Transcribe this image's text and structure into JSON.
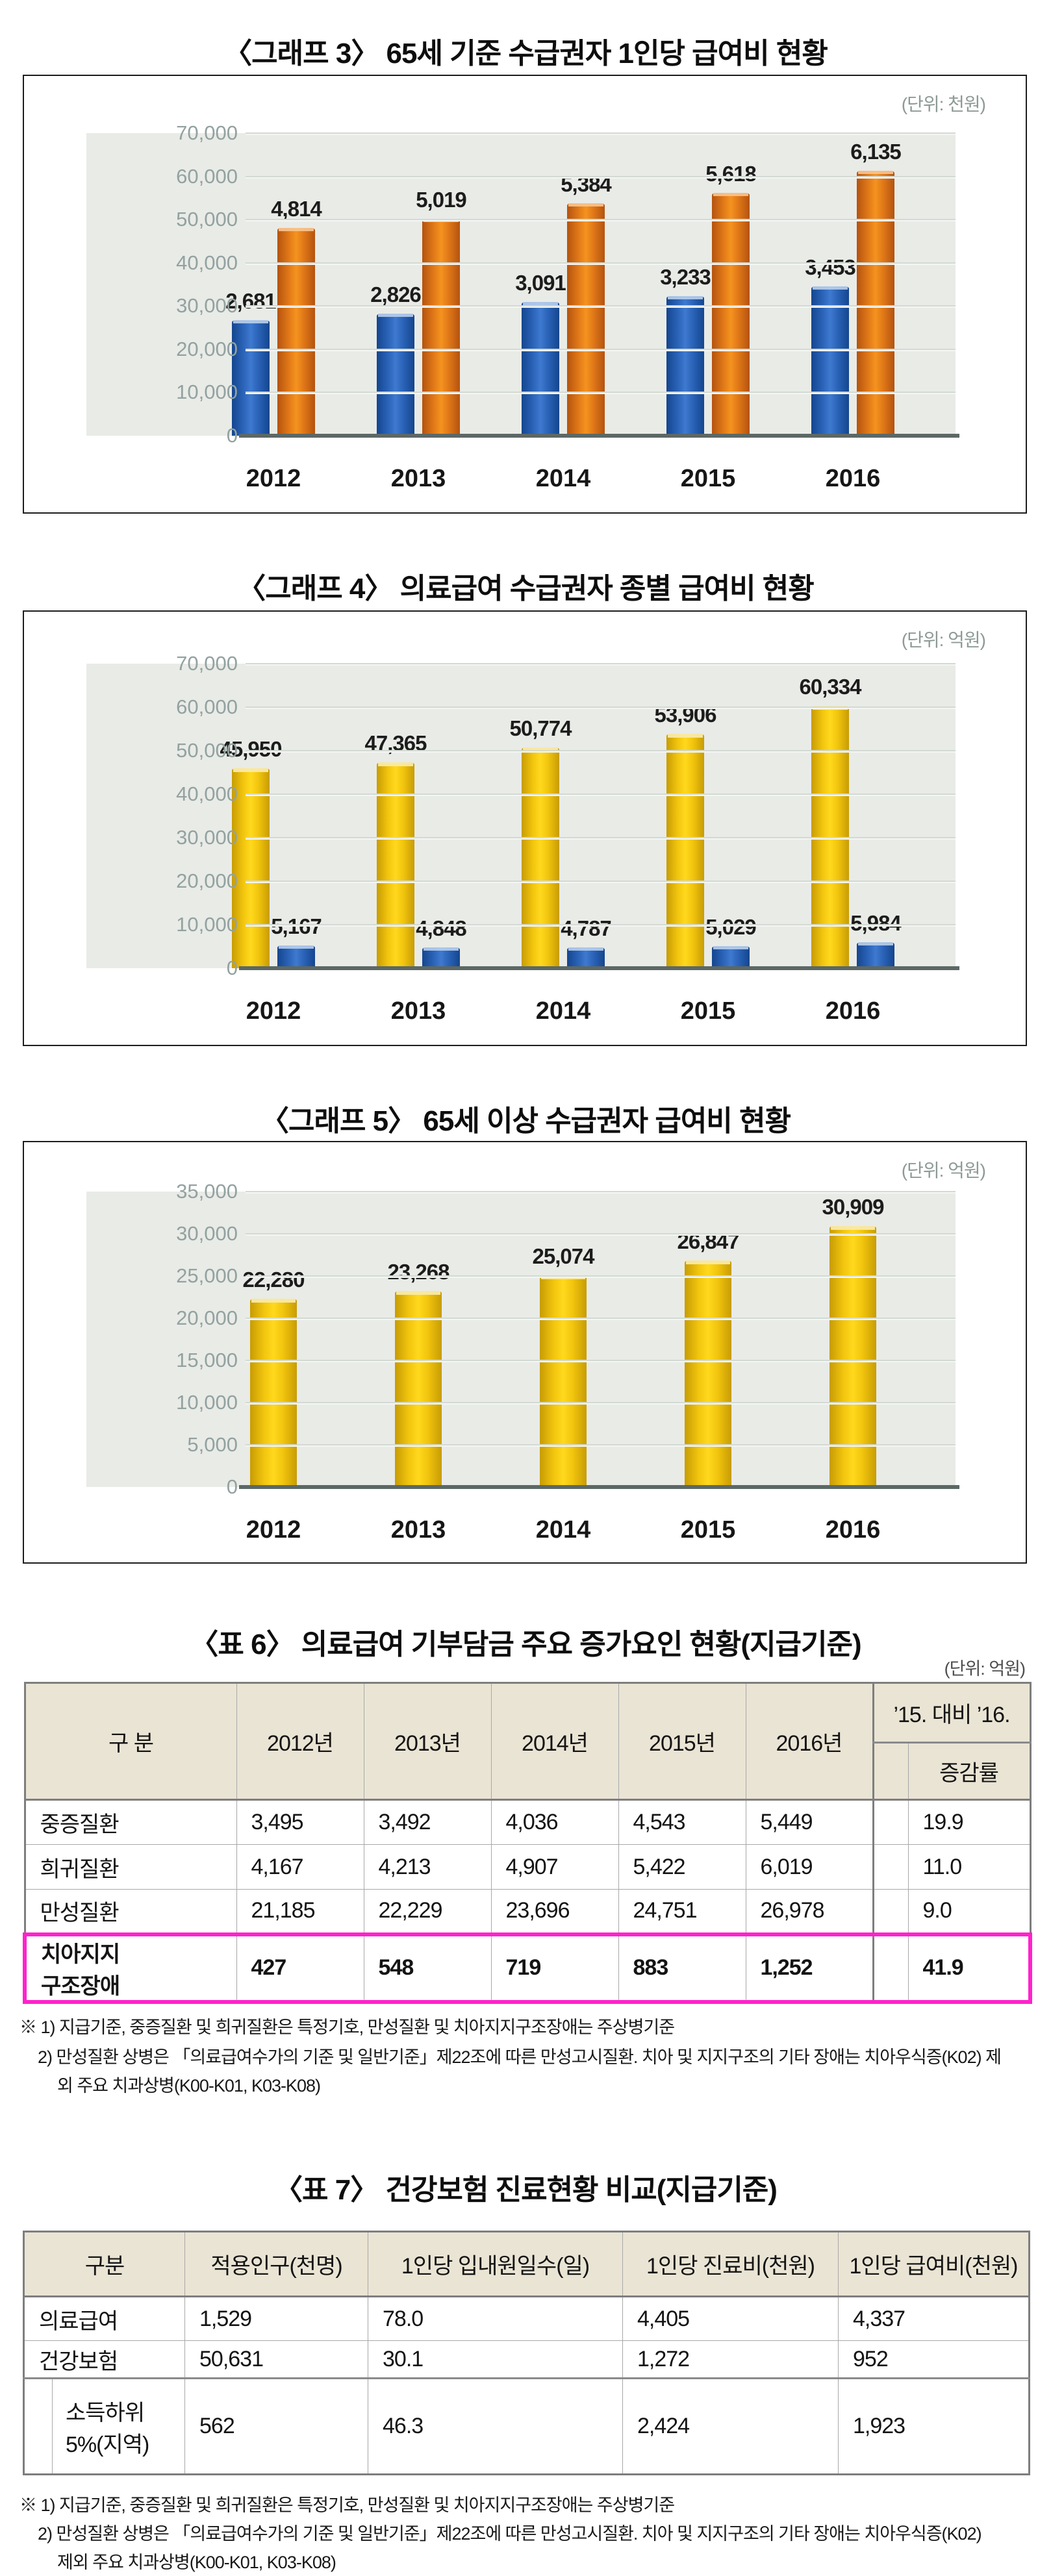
{
  "chart_data": [
    {
      "type": "bar",
      "title": "〈그래프 3〉 65세 기준 수급권자 1인당 급여비 현황",
      "unit_label": "(단위: 천원)",
      "categories": [
        "2012",
        "2013",
        "2014",
        "2015",
        "2016"
      ],
      "series": [
        {
          "name": "blue-bars",
          "color": "blue",
          "values": [
            2681,
            2826,
            3091,
            3233,
            3453
          ]
        },
        {
          "name": "orange-bars",
          "color": "orange",
          "values": [
            4814,
            5019,
            5384,
            5618,
            6135
          ]
        }
      ],
      "axis": {
        "ylim": [
          0,
          70000
        ],
        "tick_step": 10000,
        "bar_value_scale": 10
      },
      "grid": true,
      "legend": "none",
      "bar_width": "w58"
    },
    {
      "type": "bar",
      "title": "〈그래프 4〉 의료급여 수급권자 종별 급여비 현황",
      "unit_label": "(단위: 억원)",
      "categories": [
        "2012",
        "2013",
        "2014",
        "2015",
        "2016"
      ],
      "series": [
        {
          "name": "yellow-bars",
          "color": "yellow",
          "values": [
            45950,
            47365,
            50774,
            53906,
            60334
          ]
        },
        {
          "name": "blue-bars",
          "color": "blue",
          "values": [
            5167,
            4848,
            4787,
            5029,
            5984
          ]
        }
      ],
      "axis": {
        "ylim": [
          0,
          70000
        ],
        "tick_step": 10000,
        "bar_value_scale": 1
      },
      "grid": true,
      "legend": "none",
      "bar_width": "w58"
    },
    {
      "type": "bar",
      "title": "〈그래프 5〉 65세 이상 수급권자 급여비 현황",
      "unit_label": "(단위: 억원)",
      "categories": [
        "2012",
        "2013",
        "2014",
        "2015",
        "2016"
      ],
      "series": [
        {
          "name": "yellow-bars",
          "color": "yellow",
          "values": [
            22280,
            23268,
            25074,
            26847,
            30909
          ]
        }
      ],
      "axis": {
        "ylim": [
          0,
          35000
        ],
        "tick_step": 5000,
        "bar_value_scale": 1
      },
      "grid": true,
      "legend": "none",
      "bar_width": "w72"
    }
  ],
  "tables": [
    {
      "title": "〈표 6〉 의료급여 기부담금 주요 증가요인 현황(지급기준)",
      "unit_label": "(단위: 억원)",
      "col_headers": [
        "구 분",
        "2012년",
        "2013년",
        "2014년",
        "2015년",
        "2016년"
      ],
      "group_header": "’15. 대비 ’16.",
      "sub_header": "증감률",
      "rows": [
        {
          "label": "중증질환",
          "values": [
            "3,495",
            "3,492",
            "4,036",
            "4,543",
            "5,449"
          ],
          "rate": "19.9",
          "highlight": false
        },
        {
          "label": "희귀질환",
          "values": [
            "4,167",
            "4,213",
            "4,907",
            "5,422",
            "6,019"
          ],
          "rate": "11.0",
          "highlight": false
        },
        {
          "label": "만성질환",
          "values": [
            "21,185",
            "22,229",
            "23,696",
            "24,751",
            "26,978"
          ],
          "rate": "9.0",
          "highlight": false
        },
        {
          "label": "치아지지\n구조장애",
          "values": [
            "427",
            "548",
            "719",
            "883",
            "1,252"
          ],
          "rate": "41.9",
          "highlight": true
        }
      ],
      "footnotes": [
        "※ 1) 지급기준, 중증질환 및 희귀질환은 특정기호, 만성질환 및 치아지지구조장애는 주상병기준",
        "2) 만성질환 상병은 「의료급여수가의 기준 및 일반기준」제22조에 따른 만성고시질환. 치아 및 지지구조의 기타 장애는 치아우식증(K02) 제",
        "외 주요 치과상병(K00-K01, K03-K08)"
      ]
    },
    {
      "title": "〈표 7〉 건강보험 진료현황 비교(지급기준)",
      "col_headers": [
        "구분",
        "적용인구(천명)",
        "1인당 입내원일수(일)",
        "1인당 진료비(천원)",
        "1인당 급여비(천원)"
      ],
      "rows": [
        {
          "label": "의료급여",
          "values": [
            "1,529",
            "78.0",
            "4,405",
            "4,337"
          ],
          "indent": false
        },
        {
          "label": "건강보험",
          "values": [
            "50,631",
            "30.1",
            "1,272",
            "952"
          ],
          "indent": false
        },
        {
          "label": "소득하위\n5%(지역)",
          "values": [
            "562",
            "46.3",
            "2,424",
            "1,923"
          ],
          "indent": true
        }
      ],
      "footnotes": [
        "※ 1) 지급기준, 중증질환 및 희귀질환은 특정기호, 만성질환 및 치아지지구조장애는 주상병기준",
        "2) 만성질환 상병은 「의료급여수가의 기준 및 일반기준」제22조에 따른 만성고시질환. 치아 및 지지구조의 기타 장애는 치아우식증(K02)",
        "제외 주요 치과상병(K00-K01, K03-K08)"
      ]
    }
  ],
  "colors": {
    "bar_blue": "#2a63b8",
    "bar_orange": "#e07818",
    "bar_yellow": "#f2c50e",
    "plot_bg": "#e9ebe7",
    "highlight_magenta": "#ff22cc",
    "header_beige": "#eae4d4"
  }
}
